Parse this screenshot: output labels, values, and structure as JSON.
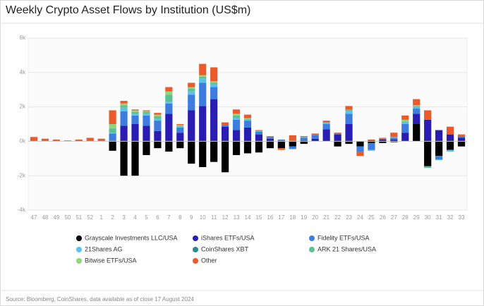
{
  "chart_data": {
    "type": "stacked-bar",
    "title": "Weekly Crypto Asset Flows by Institution (US$m)",
    "source": "Source: Bloomberg, CoinShares, data available as of close 17 August 2024",
    "categories": [
      "47",
      "48",
      "49",
      "50",
      "51",
      "52",
      "1",
      "2",
      "3",
      "4",
      "5",
      "6",
      "7",
      "8",
      "9",
      "10",
      "11",
      "12",
      "13",
      "14",
      "15",
      "16",
      "17",
      "18",
      "19",
      "20",
      "21",
      "22",
      "23",
      "24",
      "25",
      "26",
      "27",
      "28",
      "29",
      "30",
      "31",
      "32",
      "33"
    ],
    "ylim": [
      -4000,
      6000
    ],
    "yticks": [
      {
        "value": -4000,
        "label": "-4k"
      },
      {
        "value": -2000,
        "label": "-2k"
      },
      {
        "value": 0,
        "label": "0k"
      },
      {
        "value": 2000,
        "label": "2k"
      },
      {
        "value": 4000,
        "label": "4k"
      },
      {
        "value": 6000,
        "label": "6k"
      }
    ],
    "grid": true,
    "series": [
      {
        "name": "Grayscale Investments LLC/USA",
        "color": "#000000",
        "values": [
          0,
          0,
          0,
          0,
          0,
          0,
          0,
          -550,
          -2000,
          -2000,
          -800,
          -400,
          -600,
          -400,
          -1300,
          -1500,
          -1200,
          -1800,
          -800,
          -700,
          -650,
          -400,
          -400,
          -300,
          -150,
          0,
          0,
          -300,
          -150,
          -300,
          -100,
          -100,
          -50,
          0,
          1000,
          -1450,
          -850,
          -500,
          -300
        ]
      },
      {
        "name": "iShares ETFs/USA",
        "color": "#2a1db4",
        "values": [
          0,
          0,
          0,
          0,
          0,
          0,
          0,
          0,
          900,
          1000,
          900,
          600,
          1600,
          500,
          1800,
          2050,
          2450,
          850,
          650,
          800,
          400,
          150,
          0,
          0,
          50,
          150,
          700,
          400,
          1000,
          0,
          50,
          100,
          100,
          500,
          600,
          1250,
          650,
          400,
          200
        ]
      },
      {
        "name": "Fidelity ETFs/USA",
        "color": "#3d7de0",
        "values": [
          0,
          0,
          0,
          0,
          0,
          0,
          0,
          450,
          850,
          500,
          600,
          600,
          600,
          300,
          900,
          1350,
          700,
          100,
          600,
          400,
          150,
          100,
          100,
          -150,
          150,
          200,
          300,
          50,
          600,
          -300,
          -400,
          50,
          100,
          500,
          300,
          0,
          -200,
          0,
          100
        ]
      },
      {
        "name": "21Shares AG",
        "color": "#5bc2ec",
        "values": [
          0,
          0,
          0,
          0,
          0,
          0,
          0,
          50,
          200,
          100,
          100,
          100,
          100,
          50,
          200,
          250,
          150,
          0,
          100,
          50,
          50,
          0,
          0,
          0,
          50,
          0,
          100,
          0,
          150,
          0,
          -50,
          0,
          50,
          100,
          100,
          0,
          -50,
          -100,
          0
        ]
      },
      {
        "name": "CoinShares XBT",
        "color": "#2a8a8c",
        "values": [
          0,
          0,
          0,
          0,
          0,
          0,
          0,
          0,
          0,
          0,
          0,
          0,
          0,
          0,
          0,
          0,
          0,
          0,
          0,
          0,
          0,
          0,
          0,
          0,
          0,
          0,
          0,
          0,
          0,
          0,
          0,
          0,
          0,
          0,
          0,
          0,
          0,
          0,
          0
        ]
      },
      {
        "name": "ARK 21 Shares/USA",
        "color": "#5cbf96",
        "values": [
          0,
          0,
          0,
          0,
          0,
          0,
          0,
          250,
          150,
          100,
          100,
          150,
          400,
          50,
          150,
          100,
          100,
          0,
          150,
          50,
          0,
          0,
          0,
          0,
          0,
          0,
          0,
          0,
          100,
          0,
          0,
          0,
          0,
          50,
          50,
          -100,
          0,
          0,
          0
        ]
      },
      {
        "name": "Bitwise ETFs/USA",
        "color": "#8fd67c",
        "values": [
          0,
          0,
          0,
          0,
          0,
          0,
          0,
          250,
          100,
          100,
          50,
          100,
          200,
          50,
          100,
          100,
          100,
          0,
          100,
          50,
          0,
          0,
          0,
          0,
          0,
          0,
          0,
          0,
          0,
          0,
          0,
          0,
          0,
          100,
          50,
          0,
          0,
          0,
          0
        ]
      },
      {
        "name": "Other",
        "color": "#ea5a2a",
        "values": [
          250,
          150,
          100,
          50,
          100,
          200,
          150,
          800,
          150,
          50,
          50,
          100,
          250,
          50,
          250,
          650,
          800,
          150,
          250,
          200,
          50,
          50,
          -100,
          350,
          50,
          100,
          100,
          50,
          200,
          -250,
          50,
          50,
          250,
          250,
          350,
          550,
          0,
          450,
          100
        ]
      }
    ]
  }
}
